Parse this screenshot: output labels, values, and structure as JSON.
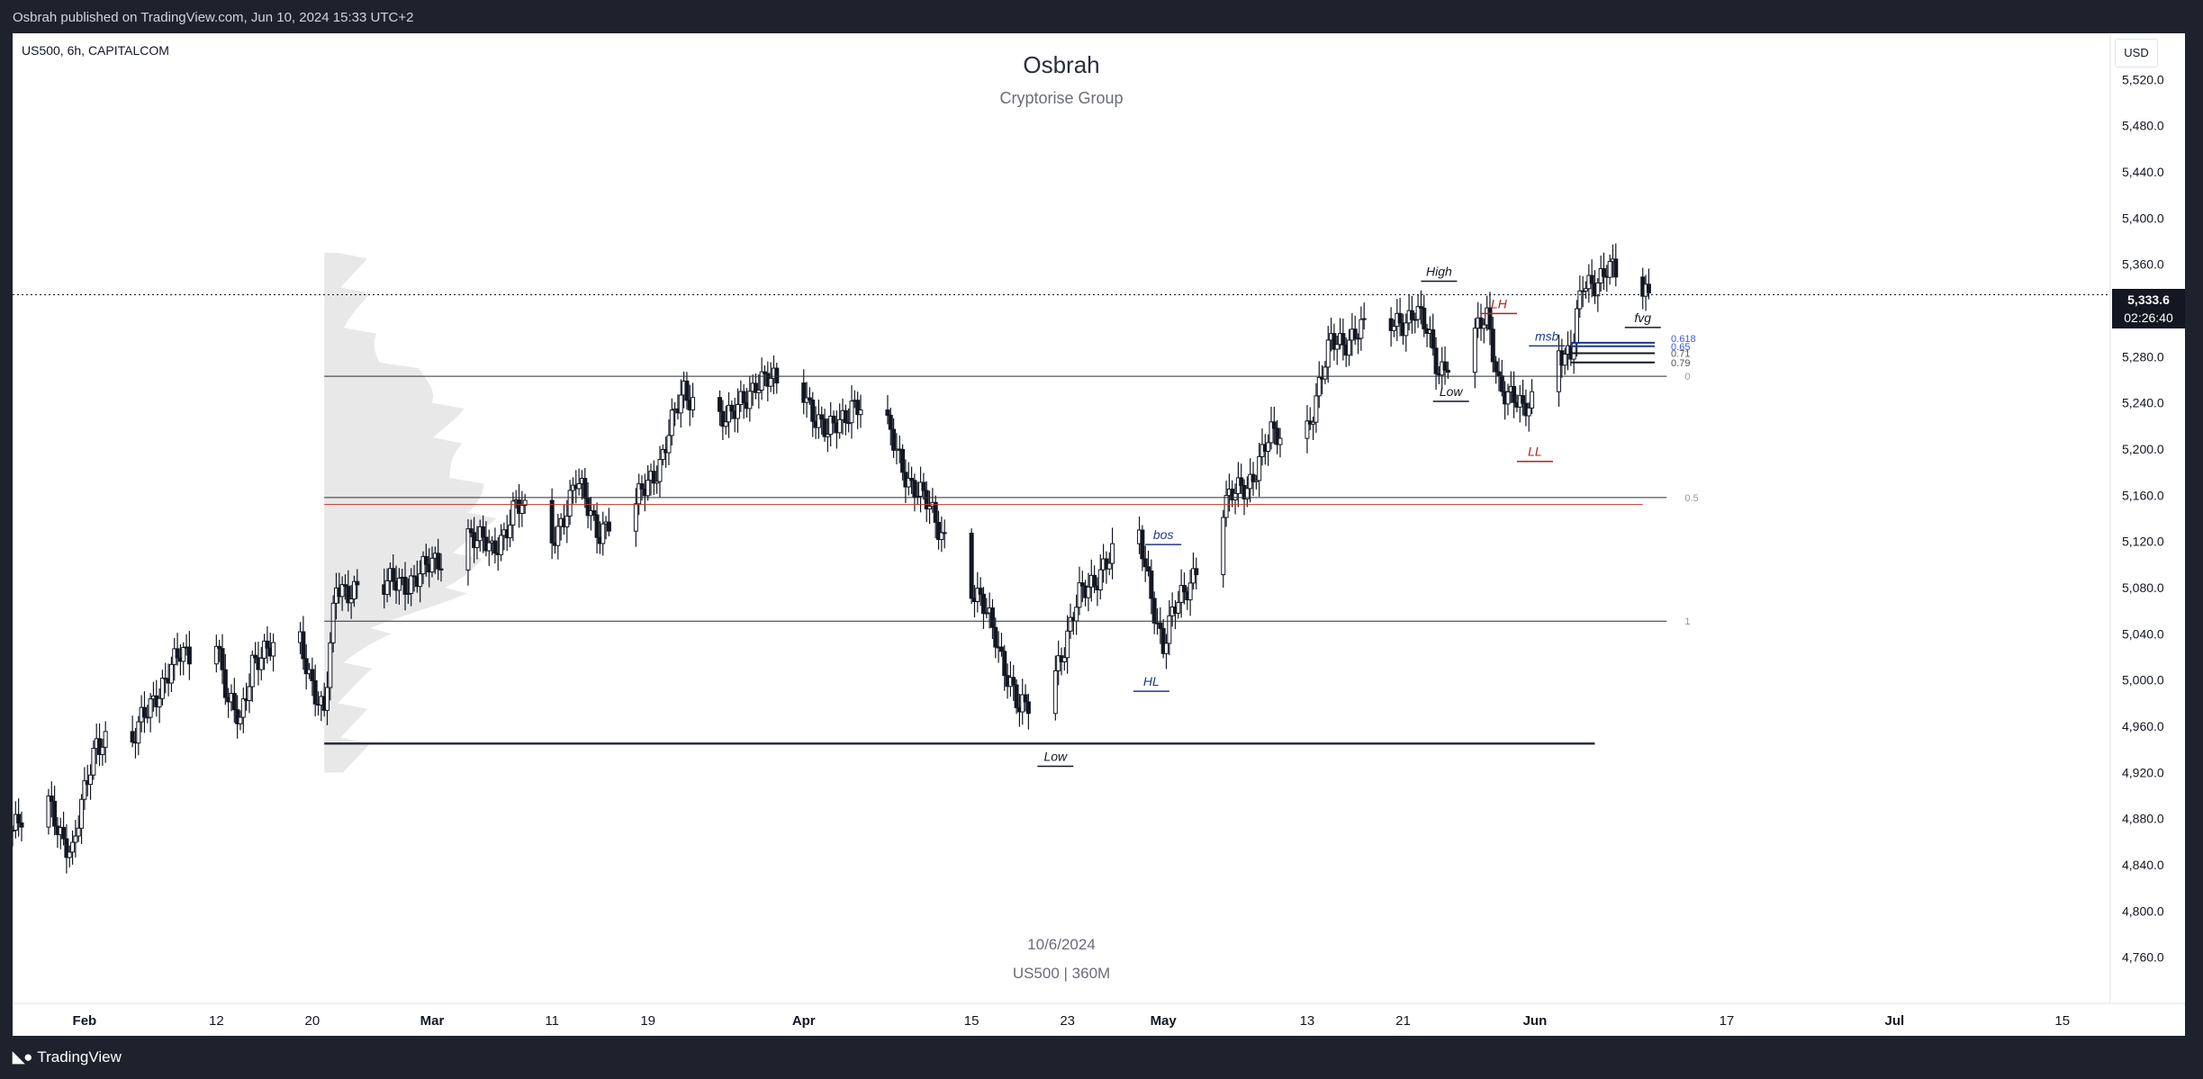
{
  "header": {
    "published_text": "Osbrah published on TradingView.com, Jun 10, 2024 15:33 UTC+2"
  },
  "chart_header": {
    "symbol": "US500, 6h, CAPITALCOM",
    "currency": "USD"
  },
  "watermark": {
    "title": "Osbrah",
    "subtitle": "Cryptorise Group",
    "date": "10/6/2024",
    "symbol_interval": "US500 | 360M"
  },
  "last_price": {
    "price": "5,333.6",
    "countdown": "02:26:40"
  },
  "footer": {
    "brand": "TradingView"
  },
  "colors": {
    "frame_bg": "#1e222d",
    "chart_bg": "#ffffff",
    "candle": "#131722",
    "annotation_blue": "#1e3a8a",
    "annotation_red": "#b22222",
    "volume_profile": "#e0e0e0",
    "red_line": "#c0392b"
  },
  "chart_data": {
    "type": "candlestick",
    "title": "",
    "ylim": [
      4720,
      5560
    ],
    "y_ticks": [
      "5,520.0",
      "5,480.0",
      "5,440.0",
      "5,400.0",
      "5,360.0",
      "5,320.0",
      "5,280.0",
      "5,240.0",
      "5,200.0",
      "5,160.0",
      "5,120.0",
      "5,080.0",
      "5,040.0",
      "5,000.0",
      "4,960.0",
      "4,920.0",
      "4,880.0",
      "4,840.0",
      "4,800.0",
      "4,760.0"
    ],
    "x_ticks": [
      {
        "label": "Feb",
        "date": "2024-02-01",
        "bold": true
      },
      {
        "label": "12",
        "date": "2024-02-12"
      },
      {
        "label": "20",
        "date": "2024-02-20"
      },
      {
        "label": "Mar",
        "date": "2024-03-01",
        "bold": true
      },
      {
        "label": "11",
        "date": "2024-03-11"
      },
      {
        "label": "19",
        "date": "2024-03-19"
      },
      {
        "label": "Apr",
        "date": "2024-04-01",
        "bold": true
      },
      {
        "label": "15",
        "date": "2024-04-15"
      },
      {
        "label": "23",
        "date": "2024-04-23"
      },
      {
        "label": "May",
        "date": "2024-05-01",
        "bold": true
      },
      {
        "label": "13",
        "date": "2024-05-13"
      },
      {
        "label": "21",
        "date": "2024-05-21"
      },
      {
        "label": "Jun",
        "date": "2024-06-01",
        "bold": true
      },
      {
        "label": "17",
        "date": "2024-06-17"
      },
      {
        "label": "Jul",
        "date": "2024-07-01",
        "bold": true
      },
      {
        "label": "15",
        "date": "2024-07-15"
      }
    ],
    "price_path": [
      [
        "2024-01-26",
        4870
      ],
      [
        "2024-01-29",
        4890
      ],
      [
        "2024-01-31",
        4850
      ],
      [
        "2024-02-02",
        4950
      ],
      [
        "2024-02-05",
        4945
      ],
      [
        "2024-02-07",
        4990
      ],
      [
        "2024-02-09",
        5020
      ],
      [
        "2024-02-12",
        5040
      ],
      [
        "2024-02-13",
        4980
      ],
      [
        "2024-02-14",
        4960
      ],
      [
        "2024-02-15",
        5020
      ],
      [
        "2024-02-19",
        5030
      ],
      [
        "2024-02-21",
        4970
      ],
      [
        "2024-02-22",
        5080
      ],
      [
        "2024-02-26",
        5080
      ],
      [
        "2024-02-29",
        5090
      ],
      [
        "2024-03-04",
        5130
      ],
      [
        "2024-03-06",
        5110
      ],
      [
        "2024-03-08",
        5150
      ],
      [
        "2024-03-11",
        5120
      ],
      [
        "2024-03-13",
        5170
      ],
      [
        "2024-03-15",
        5130
      ],
      [
        "2024-03-18",
        5150
      ],
      [
        "2024-03-20",
        5190
      ],
      [
        "2024-03-22",
        5250
      ],
      [
        "2024-03-26",
        5225
      ],
      [
        "2024-03-28",
        5260
      ],
      [
        "2024-04-01",
        5250
      ],
      [
        "2024-04-03",
        5210
      ],
      [
        "2024-04-05",
        5240
      ],
      [
        "2024-04-08",
        5215
      ],
      [
        "2024-04-10",
        5170
      ],
      [
        "2024-04-12",
        5140
      ],
      [
        "2024-04-15",
        5080
      ],
      [
        "2024-04-17",
        5040
      ],
      [
        "2024-04-19",
        4970
      ],
      [
        "2024-04-22",
        5010
      ],
      [
        "2024-04-24",
        5070
      ],
      [
        "2024-04-26",
        5100
      ],
      [
        "2024-04-29",
        5120
      ],
      [
        "2024-05-01",
        5030
      ],
      [
        "2024-05-02",
        5060
      ],
      [
        "2024-05-06",
        5150
      ],
      [
        "2024-05-08",
        5170
      ],
      [
        "2024-05-10",
        5210
      ],
      [
        "2024-05-13",
        5220
      ],
      [
        "2024-05-15",
        5290
      ],
      [
        "2024-05-17",
        5300
      ],
      [
        "2024-05-20",
        5305
      ],
      [
        "2024-05-22",
        5320
      ],
      [
        "2024-05-23",
        5300
      ],
      [
        "2024-05-24",
        5270
      ],
      [
        "2024-05-28",
        5310
      ],
      [
        "2024-05-29",
        5260
      ],
      [
        "2024-05-31",
        5230
      ],
      [
        "2024-06-03",
        5290
      ],
      [
        "2024-06-04",
        5280
      ],
      [
        "2024-06-05",
        5340
      ],
      [
        "2024-06-07",
        5355
      ],
      [
        "2024-06-10",
        5334
      ]
    ],
    "horizontal_levels": [
      {
        "price": 5263,
        "label": "0",
        "from": "2024-02-21",
        "to": "2024-06-12"
      },
      {
        "price": 5158,
        "label": "0.5",
        "from": "2024-02-21",
        "to": "2024-06-12"
      },
      {
        "price": 5051,
        "label": "1",
        "from": "2024-02-21",
        "to": "2024-06-12"
      },
      {
        "price": 5152,
        "label": "",
        "from": "2024-02-21",
        "to": "2024-06-10",
        "color": "red"
      },
      {
        "price": 4945,
        "label": "",
        "from": "2024-02-21",
        "to": "2024-06-06",
        "bold": true
      }
    ],
    "fib_levels": [
      {
        "price": 5292,
        "label": "0.618"
      },
      {
        "price": 5289,
        "label": "0.65"
      },
      {
        "price": 5283,
        "label": "0.71"
      },
      {
        "price": 5275,
        "label": "0.79"
      }
    ],
    "annotations": [
      {
        "text": "High",
        "date": "2024-05-24",
        "price": 5350,
        "color": "dark"
      },
      {
        "text": "LH",
        "date": "2024-05-29",
        "price": 5322,
        "color": "red"
      },
      {
        "text": "Low",
        "date": "2024-05-25",
        "price": 5246,
        "color": "dark"
      },
      {
        "text": "msb",
        "date": "2024-06-02",
        "price": 5294,
        "color": "blue"
      },
      {
        "text": "LL",
        "date": "2024-06-01",
        "price": 5194,
        "color": "red"
      },
      {
        "text": "fvg",
        "date": "2024-06-10",
        "price": 5310,
        "color": "dark"
      },
      {
        "text": "bos",
        "date": "2024-05-01",
        "price": 5122,
        "color": "blue"
      },
      {
        "text": "HL",
        "date": "2024-04-30",
        "price": 4995,
        "color": "blue"
      },
      {
        "text": "Low",
        "date": "2024-04-22",
        "price": 4930,
        "color": "dark"
      }
    ]
  }
}
